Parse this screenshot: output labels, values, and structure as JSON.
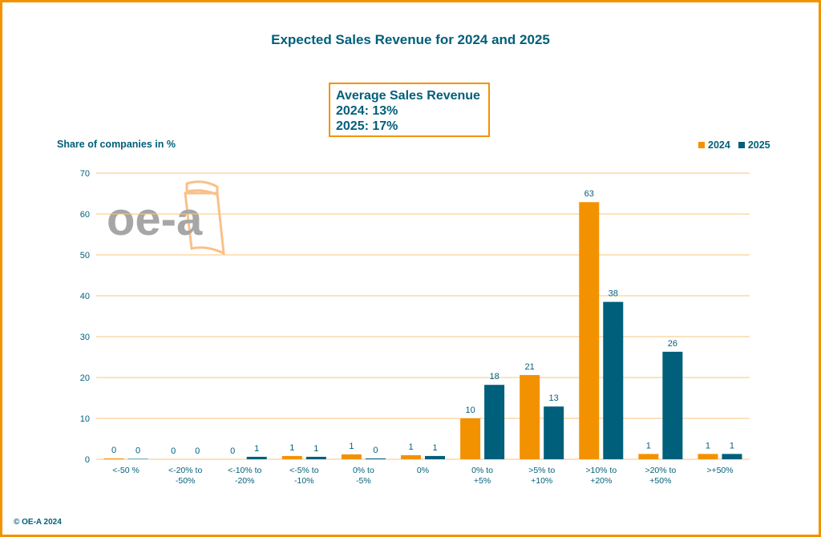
{
  "chart_data": {
    "type": "bar",
    "title": "Expected Sales Revenue for 2024 and 2025",
    "ylabel": "Share of companies in %",
    "xlabel": "",
    "ylim": [
      0,
      70
    ],
    "yticks": [
      0,
      10,
      20,
      30,
      40,
      50,
      60,
      70
    ],
    "grid": true,
    "legend_position": "top-right",
    "categories": [
      [
        "<-50 %"
      ],
      [
        "<-20% to",
        "-50%"
      ],
      [
        "<-10% to",
        "-20%"
      ],
      [
        "<-5% to",
        "-10%"
      ],
      [
        "0% to",
        "-5%"
      ],
      [
        "0%"
      ],
      [
        "0% to",
        "+5%"
      ],
      [
        ">5% to",
        "+10%"
      ],
      [
        ">10% to",
        "+20%"
      ],
      [
        ">20% to",
        "+50%"
      ],
      [
        ">+50%"
      ]
    ],
    "series": [
      {
        "name": "2024",
        "color": "#f39200",
        "values": [
          0.2,
          0,
          0,
          0.8,
          1.2,
          1.0,
          10,
          20.6,
          62.9,
          1.3,
          1.3
        ],
        "labels": [
          "0",
          "0",
          "0",
          "1",
          "1",
          "1",
          "10",
          "21",
          "63",
          "1",
          "1"
        ]
      },
      {
        "name": "2025",
        "color": "#005f7a",
        "values": [
          0.1,
          0,
          0.6,
          0.6,
          0.2,
          0.8,
          18.2,
          12.9,
          38.5,
          26.3,
          1.3
        ],
        "labels": [
          "0",
          "0",
          "1",
          "1",
          "0",
          "1",
          "18",
          "13",
          "38",
          "26",
          "1"
        ]
      }
    ],
    "annotation": {
      "lines": [
        "Average Sales Revenue",
        "2024: 13%",
        "2025: 17%"
      ]
    }
  },
  "logo_text": "oe-a",
  "copyright": "© OE-A 2024",
  "colors": {
    "accent": "#f39200",
    "brand": "#005f7a",
    "grid": "#f9c57a"
  }
}
